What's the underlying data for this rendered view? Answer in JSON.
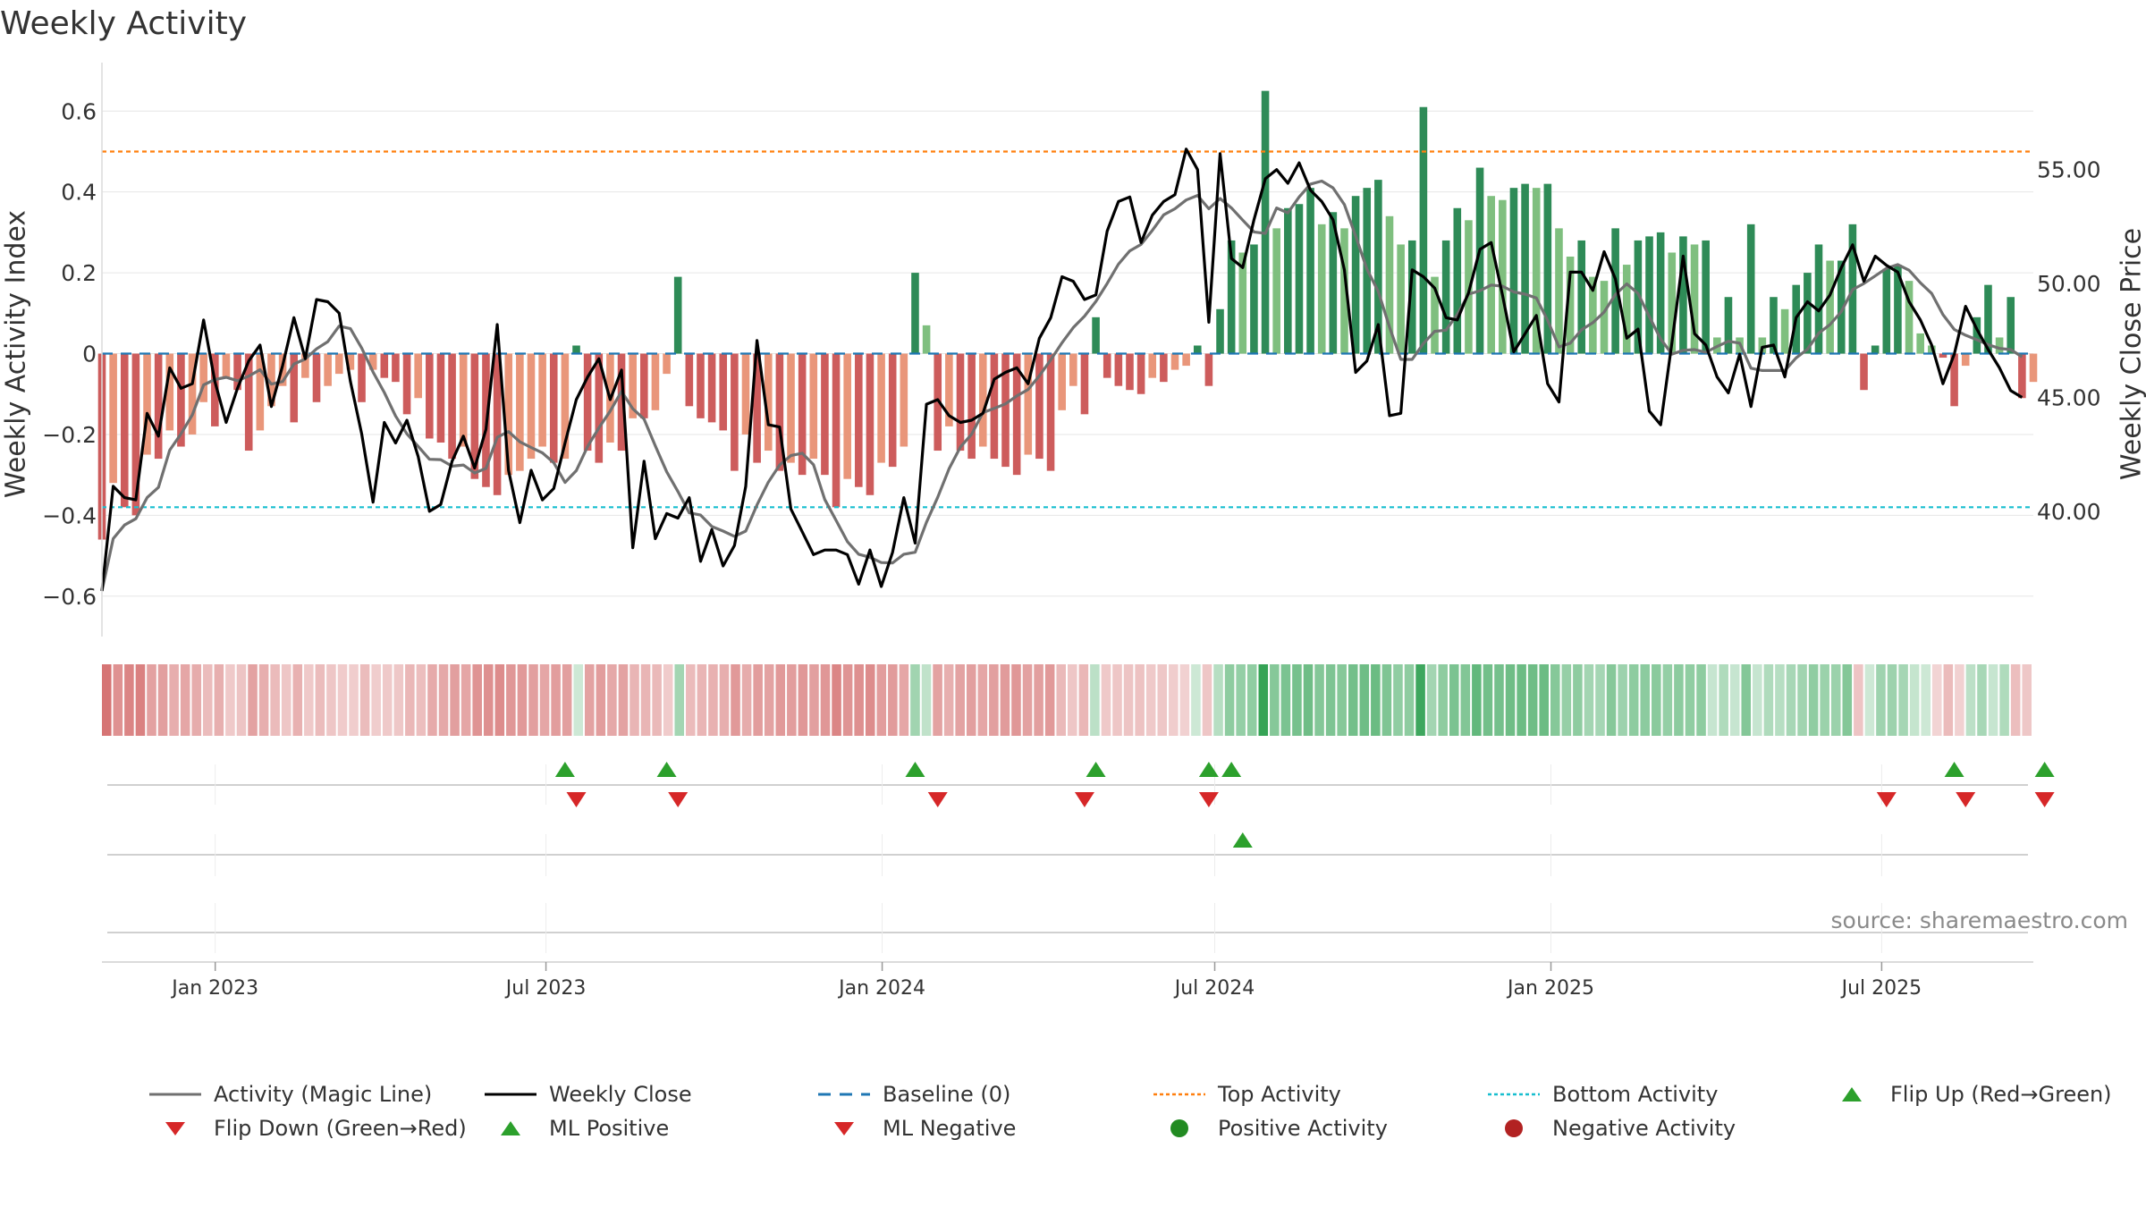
{
  "title": "Weekly Activity",
  "source": "source: sharemaestro.com",
  "colors": {
    "pos_strong": "#2e8b57",
    "pos_light": "#7fbf7f",
    "neg_strong": "#cd5c5c",
    "neg_light": "#e9967a",
    "magic": "#707070",
    "close": "#000000",
    "baseline": "#1f77b4",
    "top": "#ff7f0e",
    "bottom": "#17becf",
    "up": "#2ca02c",
    "down": "#d62728"
  },
  "chart_data": {
    "type": "bar",
    "title": "Weekly Activity",
    "ylabel": "Weekly Activity Index",
    "y2label": "Weekly Close Price",
    "ylim": [
      -0.7,
      0.72
    ],
    "y2lim": [
      34.5,
      59.7
    ],
    "yticks": [
      0.6,
      0.4,
      0.2,
      0,
      -0.2,
      -0.4,
      -0.6
    ],
    "ytick_labels": [
      "0.6",
      "0.4",
      "0.2",
      "0",
      "−0.2",
      "−0.4",
      "−0.6"
    ],
    "y2ticks": [
      55,
      50,
      45,
      40
    ],
    "y2tick_labels": [
      "55.00",
      "50.00",
      "45.00",
      "40.00"
    ],
    "top_activity": 0.5,
    "bottom_activity": -0.38,
    "x_start": "2022-10-31",
    "x_end": "2025-09-22",
    "xticks": [
      "2023-01-01",
      "2023-07-01",
      "2024-01-01",
      "2024-07-01",
      "2025-01-01",
      "2025-07-01"
    ],
    "xtick_labels": [
      "Jan 2023",
      "Jul 2023",
      "Jan 2024",
      "Jul 2024",
      "Jan 2025",
      "Jul 2025"
    ],
    "activity": [
      -0.46,
      -0.32,
      -0.38,
      -0.4,
      -0.25,
      -0.26,
      -0.19,
      -0.23,
      -0.2,
      -0.12,
      -0.18,
      -0.06,
      -0.09,
      -0.24,
      -0.19,
      -0.13,
      -0.08,
      -0.17,
      -0.06,
      -0.12,
      -0.08,
      -0.05,
      -0.04,
      -0.12,
      -0.04,
      -0.06,
      -0.07,
      -0.15,
      -0.11,
      -0.21,
      -0.22,
      -0.26,
      -0.23,
      -0.31,
      -0.33,
      -0.35,
      -0.3,
      -0.29,
      -0.26,
      -0.23,
      -0.27,
      -0.26,
      0.02,
      -0.24,
      -0.27,
      -0.22,
      -0.24,
      -0.16,
      -0.16,
      -0.14,
      -0.05,
      0.19,
      -0.13,
      -0.16,
      -0.17,
      -0.19,
      -0.29,
      -0.2,
      -0.27,
      -0.24,
      -0.29,
      -0.27,
      -0.3,
      -0.26,
      -0.3,
      -0.38,
      -0.31,
      -0.33,
      -0.35,
      -0.27,
      -0.28,
      -0.23,
      0.2,
      0.07,
      -0.24,
      -0.18,
      -0.24,
      -0.26,
      -0.23,
      -0.26,
      -0.28,
      -0.3,
      -0.25,
      -0.26,
      -0.29,
      -0.14,
      -0.08,
      -0.15,
      0.09,
      -0.06,
      -0.08,
      -0.09,
      -0.1,
      -0.06,
      -0.07,
      -0.04,
      -0.03,
      0.02,
      -0.08,
      0.11,
      0.28,
      0.25,
      0.27,
      0.65,
      0.31,
      0.36,
      0.37,
      0.41,
      0.32,
      0.35,
      0.31,
      0.39,
      0.41,
      0.43,
      0.34,
      0.27,
      0.28,
      0.61,
      0.19,
      0.28,
      0.36,
      0.33,
      0.46,
      0.39,
      0.38,
      0.41,
      0.42,
      0.41,
      0.42,
      0.31,
      0.24,
      0.28,
      0.19,
      0.18,
      0.31,
      0.22,
      0.28,
      0.29,
      0.3,
      0.25,
      0.29,
      0.27,
      0.28,
      0.04,
      0.14,
      0.04,
      0.32,
      0.04,
      0.14,
      0.11,
      0.17,
      0.2,
      0.27,
      0.23,
      0.23,
      0.32,
      -0.09,
      0.02,
      0.21,
      0.22,
      0.18,
      0.05,
      0.02,
      -0.01,
      -0.13,
      -0.03,
      0.09,
      0.17,
      0.04,
      0.14,
      -0.11,
      -0.07
    ],
    "weekly_close": [
      36.5,
      41.1,
      40.6,
      40.5,
      44.3,
      43.3,
      46.3,
      45.4,
      45.6,
      48.4,
      45.7,
      43.9,
      45.4,
      46.6,
      47.3,
      44.6,
      46.4,
      48.5,
      46.7,
      49.3,
      49.2,
      48.7,
      45.7,
      43.4,
      40.4,
      43.9,
      43.0,
      44.0,
      42.4,
      40.0,
      40.3,
      42.2,
      43.3,
      41.9,
      43.6,
      48.2,
      41.8,
      39.5,
      41.8,
      40.5,
      41.0,
      43.0,
      44.9,
      45.9,
      46.7,
      44.9,
      46.2,
      38.4,
      42.2,
      38.8,
      39.9,
      39.7,
      40.6,
      37.8,
      39.2,
      37.6,
      38.5,
      41.1,
      47.5,
      43.8,
      43.7,
      40.1,
      39.1,
      38.1,
      38.3,
      38.3,
      38.1,
      36.8,
      38.3,
      36.7,
      38.2,
      40.6,
      38.6,
      44.7,
      44.9,
      44.2,
      43.9,
      44.0,
      44.3,
      45.8,
      46.1,
      46.3,
      45.6,
      47.6,
      48.5,
      50.3,
      50.1,
      49.3,
      49.5,
      52.3,
      53.6,
      53.8,
      51.8,
      53.0,
      53.6,
      53.9,
      55.9,
      55.0,
      48.3,
      55.7,
      51.1,
      50.7,
      52.8,
      54.6,
      55.0,
      54.4,
      55.3,
      54.1,
      53.6,
      52.8,
      50.6,
      46.1,
      46.6,
      48.2,
      44.2,
      44.3,
      50.6,
      50.3,
      49.8,
      48.5,
      48.4,
      49.6,
      51.5,
      51.8,
      49.5,
      47.0,
      47.8,
      48.6,
      45.6,
      44.8,
      50.5,
      50.5,
      49.7,
      51.4,
      50.2,
      47.6,
      48.0,
      44.4,
      43.8,
      47.4,
      51.2,
      47.8,
      47.3,
      45.9,
      45.2,
      46.9,
      44.6,
      47.2,
      47.3,
      45.9,
      48.5,
      49.2,
      48.8,
      49.5,
      50.7,
      51.7,
      50.1,
      51.2,
      50.8,
      50.5,
      49.2,
      48.4,
      47.3,
      45.6,
      46.9,
      49.0,
      48.0,
      47.1,
      46.3,
      45.3,
      45.0
    ],
    "series": [
      {
        "name": "Activity (Magic Line)",
        "type": "line",
        "color": "#707070"
      },
      {
        "name": "Weekly Close",
        "type": "line",
        "color": "#000000"
      },
      {
        "name": "Baseline (0)",
        "type": "hline",
        "value": 0
      },
      {
        "name": "Top Activity",
        "type": "hline",
        "value": 0.5
      },
      {
        "name": "Bottom Activity",
        "type": "hline",
        "value": -0.38
      }
    ],
    "flip_up_weeks": [
      41,
      50,
      72,
      88,
      98,
      100,
      164,
      172
    ],
    "flip_down_weeks": [
      42,
      51,
      74,
      87,
      98,
      158,
      165,
      172
    ],
    "ml_positive_weeks": [
      101
    ]
  },
  "legend": [
    {
      "label": "Activity (Magic Line)",
      "icon": "solid-grey-line"
    },
    {
      "label": "Weekly Close",
      "icon": "solid-black-line"
    },
    {
      "label": "Baseline (0)",
      "icon": "dashed-blue-line"
    },
    {
      "label": "Top Activity",
      "icon": "dotted-orange-line"
    },
    {
      "label": "Bottom Activity",
      "icon": "dotted-cyan-line"
    },
    {
      "label": "Flip Up (Red→Green)",
      "icon": "green-triangle-up"
    },
    {
      "label": "Flip Down (Green→Red)",
      "icon": "red-triangle-down"
    },
    {
      "label": "ML Positive",
      "icon": "green-triangle-up"
    },
    {
      "label": "ML Negative",
      "icon": "red-triangle-down"
    },
    {
      "label": "Positive Activity",
      "icon": "green-dot"
    },
    {
      "label": "Negative Activity",
      "icon": "red-dot"
    }
  ]
}
